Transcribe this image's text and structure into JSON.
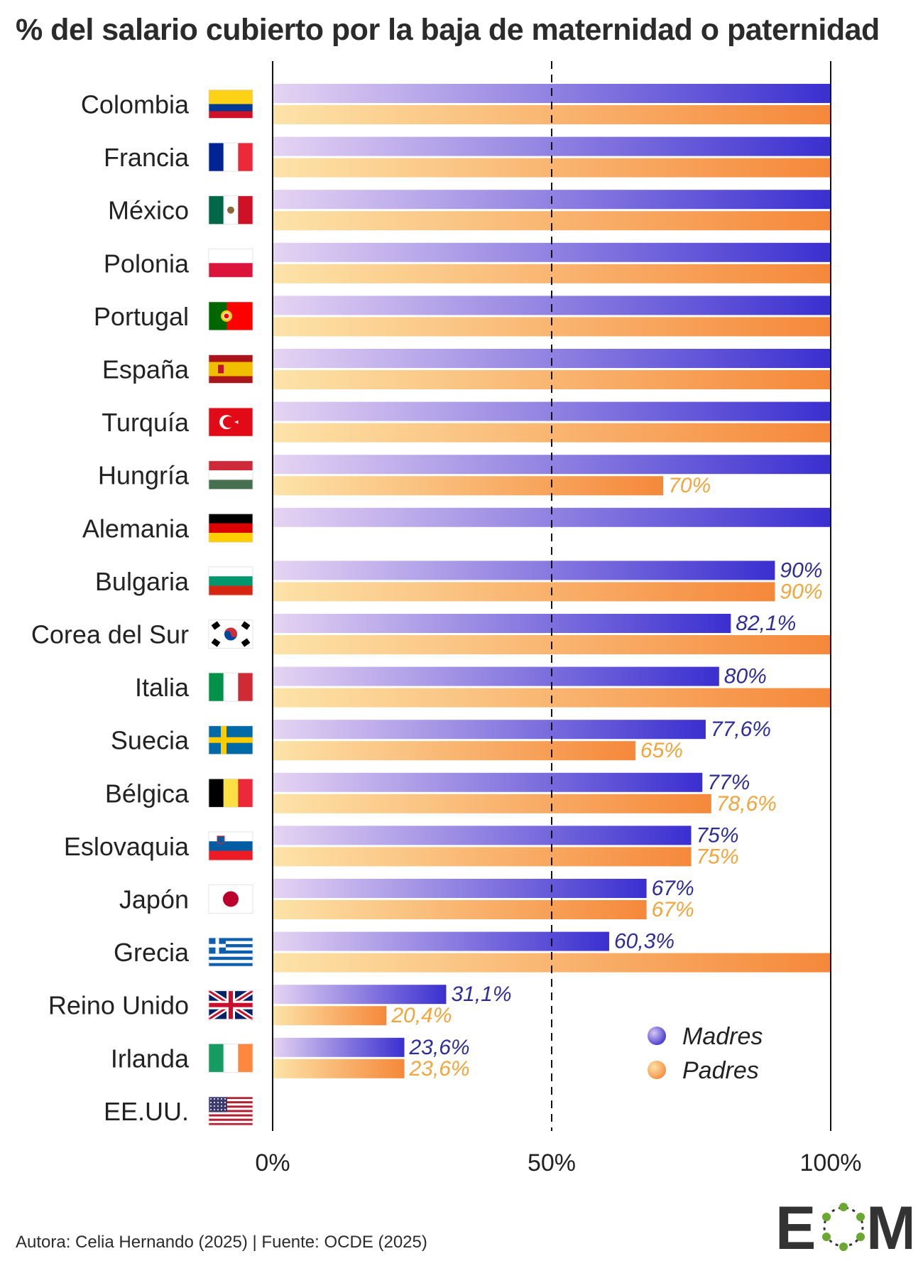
{
  "title": "% del salario cubierto por la baja de maternidad o paternidad",
  "footer": "Autora: Celia Hernando (2025) | Fuente: OCDE (2025)",
  "logo_text": "EOM",
  "colors": {
    "madres_start": "#e6d4f3",
    "madres_end": "#3a2fd0",
    "padres_start": "#fde3a8",
    "padres_end": "#f5883a",
    "madres_label": "#2d2c9a",
    "padres_label": "#f3a43a",
    "axis": "#111111"
  },
  "chart_data": {
    "type": "bar",
    "orientation": "horizontal",
    "xlim": [
      0,
      100
    ],
    "ticks": [
      "0%",
      "50%",
      "100%"
    ],
    "tick_values": [
      0,
      50,
      100
    ],
    "reference_line": 50,
    "legend_placement": "bottom-right",
    "categories": [
      "Colombia",
      "Francia",
      "México",
      "Polonia",
      "Portugal",
      "España",
      "Turquía",
      "Hungría",
      "Alemania",
      "Bulgaria",
      "Corea del Sur",
      "Italia",
      "Suecia",
      "Bélgica",
      "Eslovaquia",
      "Japón",
      "Grecia",
      "Reino Unido",
      "Irlanda",
      "EE.UU."
    ],
    "flags": [
      "colombia-flag-icon",
      "france-flag-icon",
      "mexico-flag-icon",
      "poland-flag-icon",
      "portugal-flag-icon",
      "spain-flag-icon",
      "turkey-flag-icon",
      "hungary-flag-icon",
      "germany-flag-icon",
      "bulgaria-flag-icon",
      "south-korea-flag-icon",
      "italy-flag-icon",
      "sweden-flag-icon",
      "belgium-flag-icon",
      "slovenia-flag-icon",
      "japan-flag-icon",
      "greece-flag-icon",
      "united-kingdom-flag-icon",
      "ireland-flag-icon",
      "usa-flag-icon"
    ],
    "series": [
      {
        "name": "Madres",
        "values": [
          100,
          100,
          100,
          100,
          100,
          100,
          100,
          100,
          100,
          90,
          82.1,
          80,
          77.6,
          77,
          75,
          67,
          60.3,
          31.1,
          23.6,
          0
        ],
        "labels": [
          "",
          "",
          "",
          "",
          "",
          "",
          "",
          "",
          "",
          "90%",
          "82,1%",
          "80%",
          "77,6%",
          "77%",
          "75%",
          "67%",
          "60,3%",
          "31,1%",
          "23,6%",
          ""
        ]
      },
      {
        "name": "Padres",
        "values": [
          100,
          100,
          100,
          100,
          100,
          100,
          100,
          70,
          0,
          90,
          100,
          100,
          65,
          78.6,
          75,
          67,
          100,
          20.4,
          23.6,
          0
        ],
        "labels": [
          "",
          "",
          "",
          "",
          "",
          "",
          "",
          "70%",
          "",
          "90%",
          "",
          "",
          "65%",
          "78,6%",
          "75%",
          "67%",
          "",
          "20,4%",
          "23,6%",
          ""
        ]
      }
    ]
  }
}
